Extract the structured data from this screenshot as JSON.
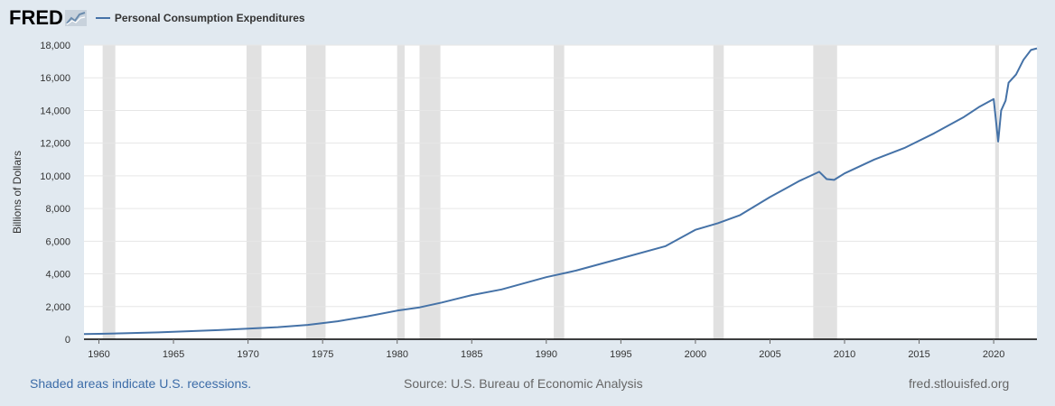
{
  "header": {
    "logo_text": "FRED",
    "logo_icon": "line-chart-icon"
  },
  "colors": {
    "background": "#e1e9f0",
    "plot_background": "#ffffff",
    "series": "#4572a7",
    "recession": "#e1e1e1",
    "grid": "#e6e6e6"
  },
  "footer": {
    "recession_note": "Shaded areas indicate U.S. recessions.",
    "source": "Source: U.S. Bureau of Economic Analysis",
    "site": "fred.stlouisfed.org"
  },
  "chart_data": {
    "type": "line",
    "title": "",
    "xlabel": "",
    "ylabel": "Billions of Dollars",
    "xlim": [
      1959.0,
      2022.9
    ],
    "ylim": [
      0,
      18000
    ],
    "yticks": [
      0,
      2000,
      4000,
      6000,
      8000,
      10000,
      12000,
      14000,
      16000,
      18000
    ],
    "ytick_labels": [
      "0",
      "2,000",
      "4,000",
      "6,000",
      "8,000",
      "10,000",
      "12,000",
      "14,000",
      "16,000",
      "18,000"
    ],
    "xticks": [
      1960,
      1965,
      1970,
      1975,
      1980,
      1985,
      1990,
      1995,
      2000,
      2005,
      2010,
      2015,
      2020
    ],
    "xtick_labels": [
      "1960",
      "1965",
      "1970",
      "1975",
      "1980",
      "1985",
      "1990",
      "1995",
      "2000",
      "2005",
      "2010",
      "2015",
      "2020"
    ],
    "grid": true,
    "legend": "top-left",
    "recessions": [
      [
        1960.25,
        1961.1
      ],
      [
        1969.9,
        1970.9
      ],
      [
        1973.9,
        1975.2
      ],
      [
        1980.0,
        1980.5
      ],
      [
        1981.5,
        1982.9
      ],
      [
        1990.5,
        1991.2
      ],
      [
        2001.2,
        2001.9
      ],
      [
        2007.9,
        2009.5
      ],
      [
        2020.1,
        2020.35
      ]
    ],
    "series": [
      {
        "name": "Personal Consumption Expenditures",
        "x": [
          1959,
          1960,
          1962,
          1964,
          1966,
          1968,
          1970,
          1972,
          1974,
          1976,
          1978,
          1980,
          1981.5,
          1983,
          1985,
          1987,
          1990,
          1992,
          1995,
          1998,
          2000,
          2001.5,
          2003,
          2005,
          2006,
          2007,
          2008.3,
          2008.8,
          2009.3,
          2010,
          2012,
          2014,
          2016,
          2018,
          2019,
          2020.0,
          2020.3,
          2020.5,
          2020.8,
          2021,
          2021.5,
          2022,
          2022.5,
          2022.9
        ],
        "y": [
          315,
          330,
          370,
          420,
          490,
          560,
          650,
          740,
          880,
          1100,
          1400,
          1750,
          1950,
          2250,
          2700,
          3050,
          3800,
          4200,
          4950,
          5700,
          6700,
          7100,
          7600,
          8700,
          9200,
          9700,
          10250,
          9800,
          9750,
          10150,
          11000,
          11700,
          12600,
          13600,
          14200,
          14700,
          12100,
          14000,
          14600,
          15700,
          16200,
          17100,
          17700,
          17800
        ]
      }
    ]
  }
}
